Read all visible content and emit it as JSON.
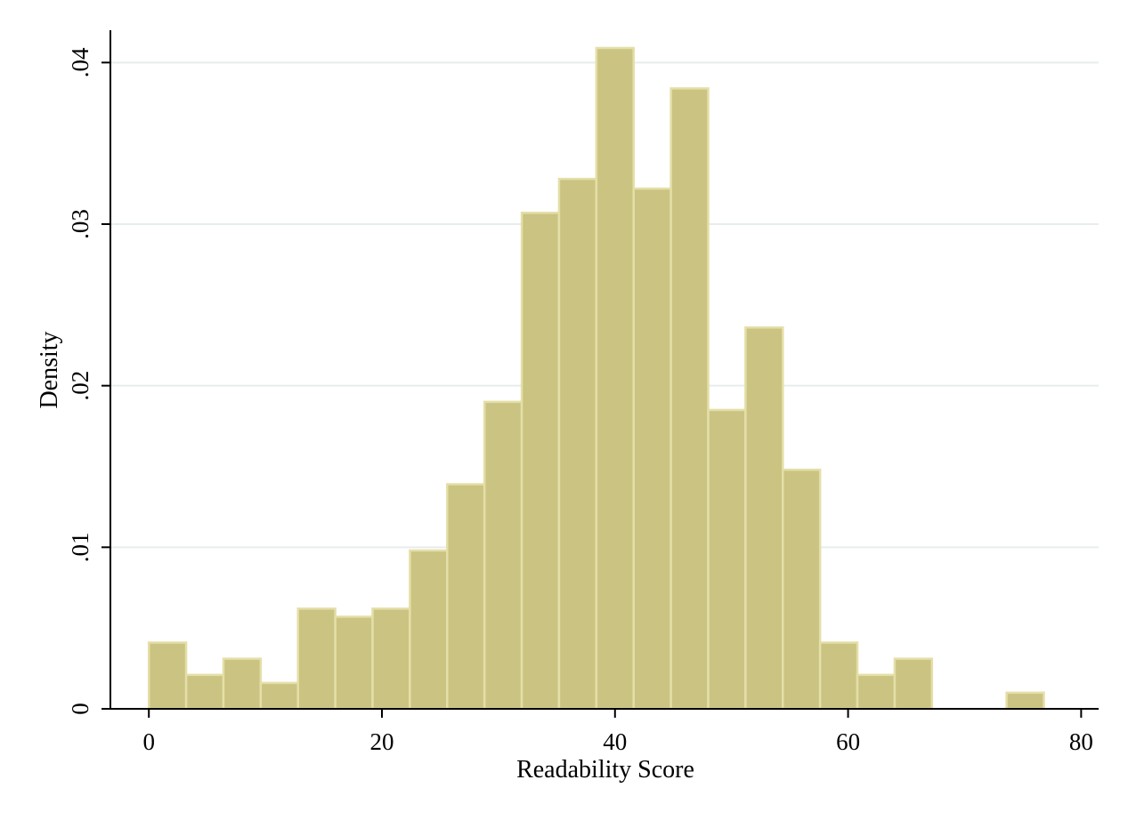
{
  "chart_data": {
    "type": "bar",
    "subtype": "histogram",
    "title": "",
    "xlabel": "Readability Score",
    "ylabel": "Density",
    "xlim": [
      -3.3,
      81.5
    ],
    "ylim": [
      0,
      0.042
    ],
    "x_ticks": [
      0,
      20,
      40,
      60,
      80
    ],
    "x_tick_labels": [
      "0",
      "20",
      "40",
      "60",
      "80"
    ],
    "y_ticks": [
      0,
      0.01,
      0.02,
      0.03,
      0.04
    ],
    "y_tick_labels": [
      "0",
      ".01",
      ".02",
      ".03",
      ".04"
    ],
    "grid": "horizontal",
    "legend": "none",
    "bin_width": 3.2,
    "bin_edges": [
      0,
      3.2,
      6.4,
      9.6,
      12.8,
      16.0,
      19.2,
      22.4,
      25.6,
      28.8,
      32.0,
      35.2,
      38.4,
      41.6,
      44.8,
      48.0,
      51.2,
      54.4,
      57.6,
      60.8,
      64.0,
      67.2,
      70.4,
      73.6,
      76.8
    ],
    "values": [
      0.0041,
      0.0021,
      0.0031,
      0.0016,
      0.0062,
      0.0057,
      0.0062,
      0.0098,
      0.0139,
      0.019,
      0.0307,
      0.0328,
      0.0409,
      0.0322,
      0.0384,
      0.0185,
      0.0236,
      0.0148,
      0.0041,
      0.0021,
      0.0031,
      0,
      0,
      0.001
    ],
    "colors": {
      "bar_fill": "#cbc381",
      "bar_edge": "#e4dfa8",
      "grid": "#e6edec",
      "axis": "#000000"
    }
  }
}
